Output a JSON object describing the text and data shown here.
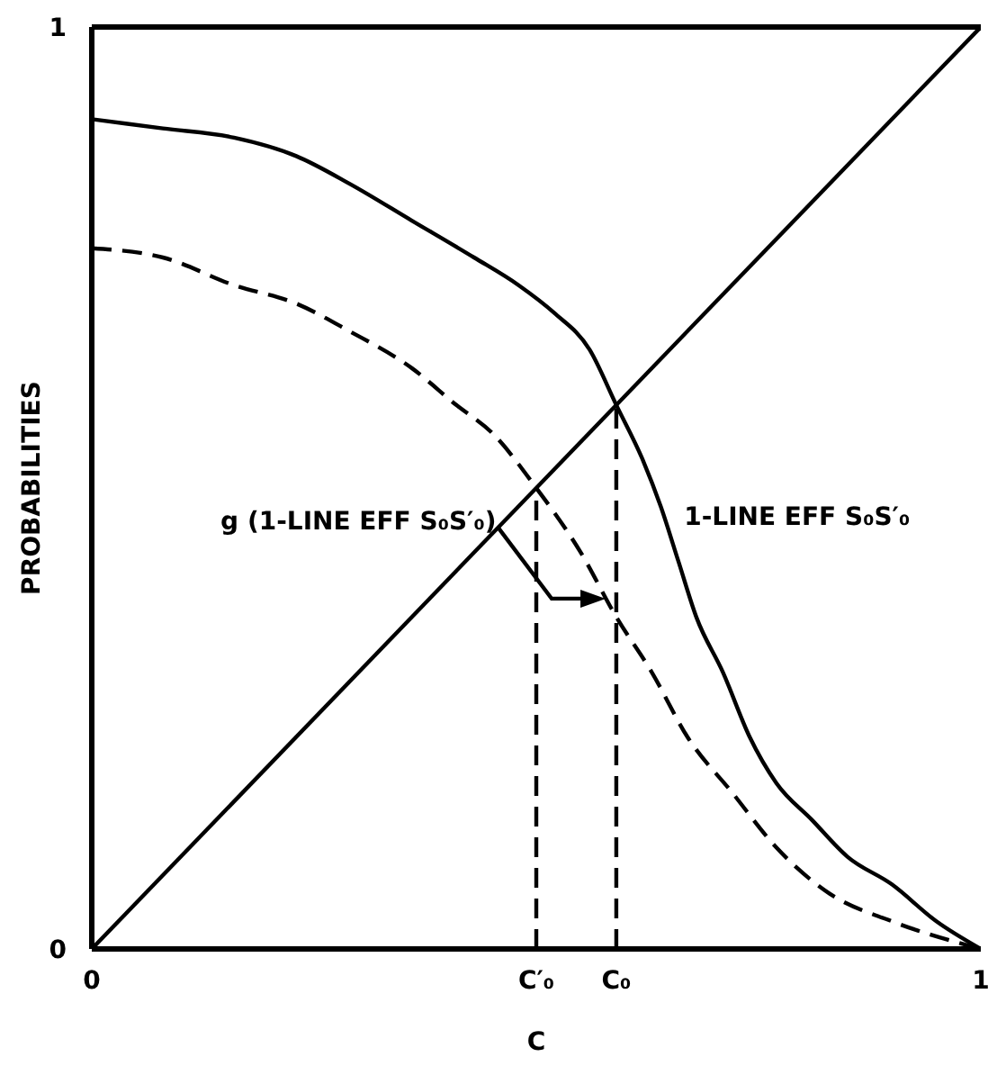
{
  "chart_data": {
    "type": "line",
    "xlabel": "C",
    "ylabel": "PROBABILITIES",
    "xlim": [
      0,
      1
    ],
    "ylim": [
      0,
      1
    ],
    "xticks": [
      0,
      {
        "value": 0.5,
        "label": "C′₀"
      },
      {
        "value": 0.59,
        "label": "C₀"
      },
      1
    ],
    "yticks": [
      0,
      1
    ],
    "series": [
      {
        "color": "#000000",
        "line_style": "solid",
        "x": [
          0,
          1
        ],
        "values": [
          0,
          1
        ]
      },
      {
        "color": "#000000",
        "line_style": "solid",
        "x": [
          0,
          0.08,
          0.16,
          0.23,
          0.29,
          0.36,
          0.43,
          0.48,
          0.52,
          0.56,
          0.59,
          0.62,
          0.64,
          0.66,
          0.68,
          0.71,
          0.74,
          0.77,
          0.81,
          0.85,
          0.9,
          0.95,
          1
        ],
        "values": [
          0.9,
          0.89,
          0.88,
          0.86,
          0.83,
          0.79,
          0.75,
          0.72,
          0.69,
          0.65,
          0.59,
          0.53,
          0.48,
          0.42,
          0.36,
          0.3,
          0.23,
          0.18,
          0.14,
          0.1,
          0.07,
          0.03,
          0
        ]
      },
      {
        "color": "#000000",
        "line_style": "dashed",
        "x": [
          0,
          0.08,
          0.16,
          0.23,
          0.29,
          0.36,
          0.41,
          0.45,
          0.5,
          0.55,
          0.59,
          0.63,
          0.67,
          0.72,
          0.77,
          0.83,
          0.9,
          1
        ],
        "values": [
          0.76,
          0.75,
          0.72,
          0.7,
          0.67,
          0.63,
          0.59,
          0.56,
          0.5,
          0.43,
          0.36,
          0.3,
          0.23,
          0.17,
          0.11,
          0.06,
          0.03,
          0
        ]
      },
      {
        "color": "#000000",
        "line_style": "dashed",
        "x": [
          0.5,
          0.5
        ],
        "values": [
          0,
          0.5
        ]
      },
      {
        "color": "#000000",
        "line_style": "dashed",
        "x": [
          0.59,
          0.59
        ],
        "values": [
          0,
          0.59
        ]
      }
    ],
    "annotations": [
      "g (1-LINE EFF S₀S′₀)",
      {
        "text": "1-LINE EFF S₀S′₀",
        "x": 0.65,
        "y": 0.47
      }
    ]
  }
}
